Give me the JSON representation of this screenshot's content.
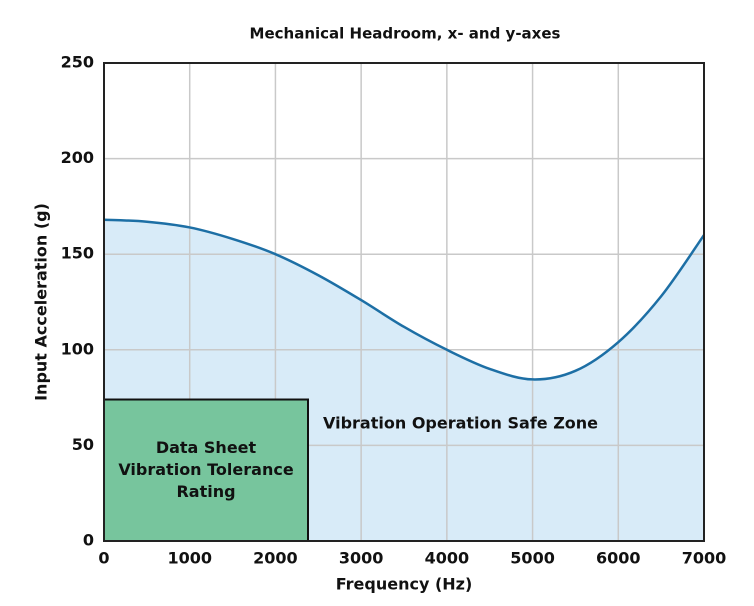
{
  "chart_data": {
    "type": "area",
    "title": "Mechanical Headroom, x- and y-axes",
    "x_label": "Frequency (Hz)",
    "y_label": "Input Acceleration (g)",
    "x": [
      0,
      500,
      1000,
      1500,
      2000,
      2500,
      3000,
      3500,
      4000,
      4500,
      5000,
      5500,
      6000,
      6500,
      7000
    ],
    "series": [
      {
        "color": "#1d6fa5",
        "fill": "#d8ebf8",
        "values": [
          168,
          167,
          164,
          158,
          150,
          139,
          126,
          112,
          100,
          90,
          84.5,
          89,
          104,
          128,
          160
        ]
      }
    ],
    "xlim": [
      0,
      7000
    ],
    "ylim": [
      0,
      250
    ],
    "xticks": [
      0,
      1000,
      2000,
      3000,
      4000,
      5000,
      6000,
      7000
    ],
    "yticks": [
      0,
      50,
      100,
      150,
      200,
      250
    ],
    "grid": true,
    "annotation": "Vibration Operation Safe Zone",
    "box": {
      "lines": [
        "Data Sheet",
        "Vibration Tolerance",
        "Rating"
      ],
      "xmax": 2380,
      "ymax": 74,
      "color": "#77c59d"
    }
  }
}
